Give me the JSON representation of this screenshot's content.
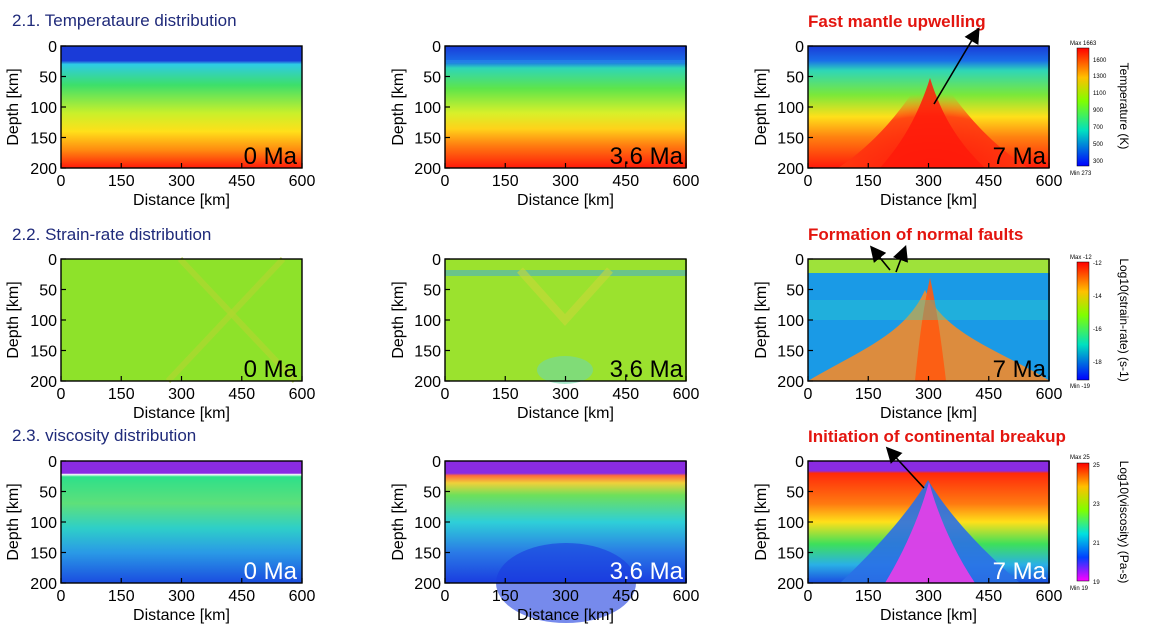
{
  "sections": [
    {
      "title": "2.1. Temperataure distribution"
    },
    {
      "title": "2.2. Strain-rate distribution"
    },
    {
      "title": "2.3. viscosity distribution"
    }
  ],
  "annotations": [
    "Fast mantle upwelling",
    "Formation of normal faults",
    "Initiation of continental breakup"
  ],
  "colorbars": [
    {
      "title": "Temperature (K)",
      "max_label": "Max 1663",
      "min_label": "Min 273",
      "ticks": [
        "1600",
        "1300",
        "1100",
        "900",
        "700",
        "500",
        "300"
      ]
    },
    {
      "title": "Log10(strain-rate) (s-1)",
      "max_label": "Max -12",
      "min_label": "Min -19",
      "ticks": [
        "-12",
        "-14",
        "-16",
        "-18"
      ]
    },
    {
      "title": "Log10(viscosity) (Pa-s)",
      "max_label": "Max 25",
      "min_label": "Min 19",
      "ticks": [
        "25",
        "23",
        "21",
        "19"
      ]
    }
  ],
  "chart_data": {
    "type": "heatmap",
    "xlabel": "Distance [km]",
    "ylabel": "Depth [km]",
    "xlim": [
      0,
      600
    ],
    "ylim": [
      200,
      0
    ],
    "x_ticks": [
      "0",
      "150",
      "300",
      "450",
      "600"
    ],
    "y_ticks": [
      "0",
      "50",
      "100",
      "150",
      "200"
    ],
    "times": [
      "0 Ma",
      "3.6 Ma",
      "7 Ma"
    ],
    "fields": [
      {
        "name": "Temperature",
        "unit": "K",
        "range": [
          273,
          1663
        ]
      },
      {
        "name": "Strain-rate",
        "unit": "s-1",
        "scale": "log10",
        "range": [
          -19,
          -12
        ]
      },
      {
        "name": "Viscosity",
        "unit": "Pa-s",
        "scale": "log10",
        "range": [
          19,
          25
        ]
      }
    ]
  }
}
